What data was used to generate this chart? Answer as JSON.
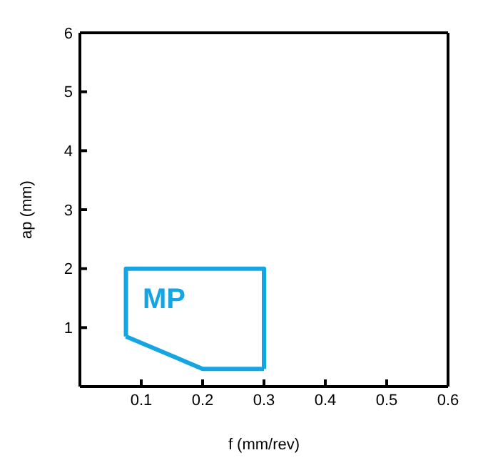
{
  "chart_data": {
    "type": "line",
    "xlabel": "f (mm/rev)",
    "ylabel": "ap (mm)",
    "xlim": [
      0,
      0.6
    ],
    "xticks": [
      0.1,
      0.2,
      0.3,
      0.4,
      0.5,
      0.6
    ],
    "ylim": [
      0,
      6
    ],
    "yticks": [
      1,
      2,
      3,
      4,
      5,
      6
    ],
    "grid": false,
    "marker": "none",
    "line_style": "solid",
    "series": [
      {
        "color": "#14a5e3",
        "x": [
          0.075,
          0.075,
          0.3,
          0.3
        ],
        "values": [
          0.85,
          2,
          2,
          0.3
        ]
      },
      {
        "color": "#14a5e3",
        "x": [
          0.075,
          0.2,
          0.3
        ],
        "values": [
          0.85,
          0.3,
          0.3
        ]
      }
    ],
    "annotations": [
      "MP"
    ]
  }
}
